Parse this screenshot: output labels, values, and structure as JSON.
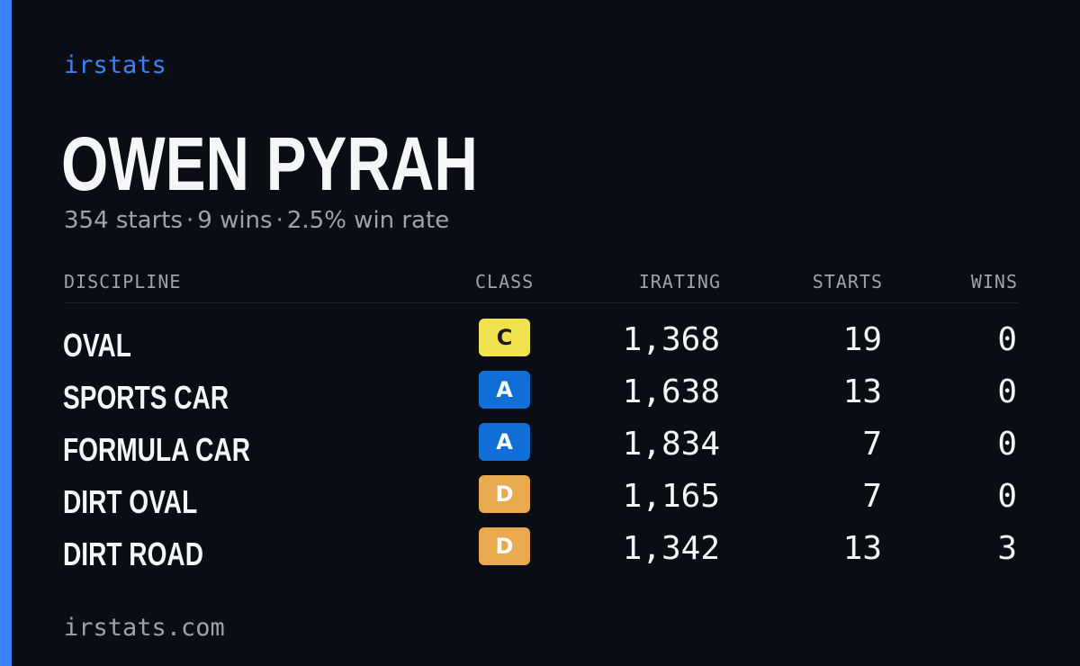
{
  "brand": "irstats",
  "driver": {
    "name": "OWEN PYRAH",
    "starts": "354 starts",
    "wins": "9 wins",
    "win_rate": "2.5% win rate",
    "separator": "·"
  },
  "table": {
    "headers": {
      "discipline": "DISCIPLINE",
      "class": "CLASS",
      "irating": "IRATING",
      "starts": "STARTS",
      "wins": "WINS"
    },
    "rows": [
      {
        "discipline": "OVAL",
        "class": "C",
        "class_color": "#f0e24e",
        "class_text_color": "#1a1a1a",
        "irating": "1,368",
        "starts": "19",
        "wins": "0"
      },
      {
        "discipline": "SPORTS CAR",
        "class": "A",
        "class_color": "#0f6fd6",
        "class_text_color": "#ffffff",
        "irating": "1,638",
        "starts": "13",
        "wins": "0"
      },
      {
        "discipline": "FORMULA CAR",
        "class": "A",
        "class_color": "#0f6fd6",
        "class_text_color": "#ffffff",
        "irating": "1,834",
        "starts": "7",
        "wins": "0"
      },
      {
        "discipline": "DIRT OVAL",
        "class": "D",
        "class_color": "#e9a94e",
        "class_text_color": "#ffffff",
        "irating": "1,165",
        "starts": "7",
        "wins": "0"
      },
      {
        "discipline": "DIRT ROAD",
        "class": "D",
        "class_color": "#e9a94e",
        "class_text_color": "#ffffff",
        "irating": "1,342",
        "starts": "13",
        "wins": "3"
      }
    ]
  },
  "footer": "irstats.com",
  "colors": {
    "background": "#0a0d14",
    "accent": "#3b82f6",
    "text_primary": "#f5f6f8",
    "text_muted": "#9ca3af"
  }
}
